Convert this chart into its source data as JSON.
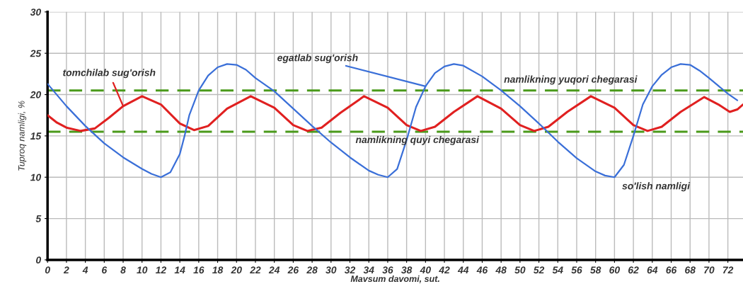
{
  "chart_data": {
    "type": "line",
    "xlabel": "Mavsum davomi, sut.",
    "ylabel": "Tuproq namligi, %",
    "xlim": [
      0,
      73.6
    ],
    "xticks": [
      0,
      2,
      4,
      6,
      8,
      10,
      12,
      14,
      16,
      18,
      20,
      22,
      24,
      26,
      28,
      30,
      32,
      34,
      36,
      38,
      40,
      42,
      44,
      46,
      48,
      50,
      52,
      54,
      56,
      58,
      60,
      62,
      64,
      66,
      68,
      70,
      72
    ],
    "ylim": [
      0,
      30
    ],
    "yticks": [
      0,
      5,
      10,
      15,
      20,
      25,
      30
    ],
    "grid": true,
    "legend": false,
    "line_style": "solid",
    "marker": "none",
    "series": [
      {
        "name": "tomchilab sug'orish",
        "color": "#e02020",
        "x": [
          0,
          1,
          2,
          3.5,
          5,
          6.5,
          8,
          10,
          12,
          14,
          15.5,
          17,
          19,
          21.5,
          24,
          26,
          27.5,
          29,
          31,
          33.5,
          36,
          38,
          39.5,
          41,
          43,
          45.5,
          48,
          50,
          51.5,
          53,
          55,
          57.5,
          60,
          62,
          63.5,
          65,
          67,
          69.5,
          71,
          72.2,
          73,
          73.6
        ],
        "values": [
          17.5,
          16.6,
          16.0,
          15.6,
          15.9,
          17.2,
          18.6,
          19.8,
          18.8,
          16.5,
          15.7,
          16.2,
          18.3,
          19.8,
          18.4,
          16.3,
          15.6,
          16.0,
          17.8,
          19.8,
          18.4,
          16.3,
          15.6,
          16.1,
          17.9,
          19.8,
          18.3,
          16.3,
          15.6,
          16.1,
          17.9,
          19.8,
          18.4,
          16.3,
          15.6,
          16.1,
          17.9,
          19.7,
          18.8,
          17.9,
          18.2,
          18.8
        ]
      },
      {
        "name": "egatlab sug'orish",
        "color": "#3a6fd8",
        "x": [
          0,
          2,
          4,
          6,
          8,
          10,
          11,
          12,
          13,
          14,
          14.5,
          15,
          16,
          17,
          18,
          19,
          20,
          21,
          22,
          24,
          26,
          28,
          30,
          32,
          34,
          35,
          36,
          37,
          38,
          39,
          40,
          41,
          42,
          43,
          44,
          46,
          48,
          50,
          52,
          54,
          56,
          58,
          59,
          60,
          61,
          62,
          63,
          64,
          65,
          66,
          67,
          68,
          69,
          70,
          72,
          73
        ],
        "values": [
          21.3,
          18.6,
          16.2,
          14.1,
          12.4,
          11.0,
          10.4,
          10.0,
          10.6,
          12.8,
          15.0,
          17.5,
          20.5,
          22.3,
          23.3,
          23.7,
          23.6,
          23.0,
          22.0,
          20.4,
          18.3,
          16.2,
          14.2,
          12.4,
          10.8,
          10.3,
          10.0,
          11.0,
          14.5,
          18.5,
          21.0,
          22.6,
          23.4,
          23.7,
          23.5,
          22.2,
          20.5,
          18.6,
          16.5,
          14.3,
          12.3,
          10.7,
          10.2,
          10.0,
          11.5,
          15.0,
          18.8,
          21.0,
          22.4,
          23.3,
          23.7,
          23.6,
          22.9,
          22.0,
          20.1,
          19.3
        ]
      }
    ],
    "ref_lines": [
      {
        "axis": "y",
        "value": 20.5,
        "label": "namlikning yuqori chegarasi",
        "color": "#4a9a1a",
        "line_style": "dashed"
      },
      {
        "axis": "y",
        "value": 15.5,
        "label": "namlikning quyi chegarasi",
        "color": "#4a9a1a",
        "line_style": "dashed"
      }
    ],
    "annotations": [
      {
        "text": "so'lish namligi",
        "x": 60,
        "y": 10
      }
    ]
  }
}
